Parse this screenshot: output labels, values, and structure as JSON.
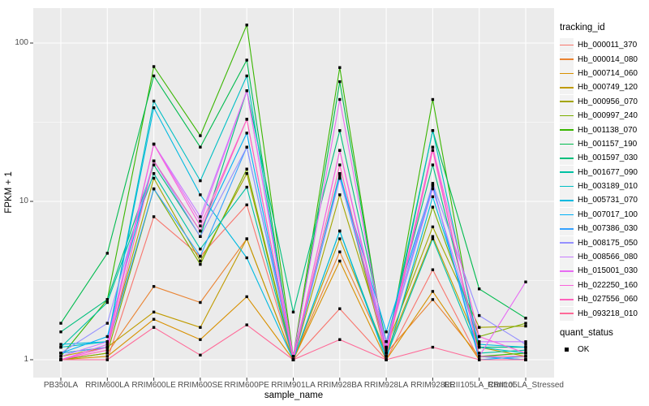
{
  "chart_data": {
    "type": "line",
    "title": "",
    "xlabel": "sample_name",
    "ylabel": "FPKM + 1",
    "y_scale": "log10",
    "y_ticks": [
      "1",
      "10",
      "100"
    ],
    "y_tick_values": [
      1,
      10,
      100
    ],
    "ylim": [
      0.78,
      165
    ],
    "grid": true,
    "legend_position": "right",
    "legend_titles": {
      "series": "tracking_id",
      "points": "quant_status"
    },
    "point_legend_items": [
      "OK"
    ],
    "point_shape": "filled-square",
    "categories": [
      "PB350LA",
      "RRIM600LA",
      "RRIM600LE",
      "RRIM600SE",
      "RRIM600PE",
      "RRIM901LA",
      "RRIM928BA",
      "RRIM928LA",
      "RRIM928LE",
      "RRII105LA_Control",
      "RRII105LA_Stressed"
    ],
    "series": [
      {
        "name": "Hb_000011_370",
        "color": "#F8766D",
        "values": [
          1.0,
          1.0,
          8.0,
          4.5,
          9.5,
          1.0,
          2.1,
          1.0,
          3.7,
          1.0,
          1.0
        ]
      },
      {
        "name": "Hb_000014_080",
        "color": "#EA8331",
        "values": [
          1.0,
          1.1,
          2.9,
          2.3,
          5.8,
          1.0,
          4.8,
          1.1,
          2.4,
          1.05,
          1.0
        ]
      },
      {
        "name": "Hb_000714_060",
        "color": "#D89000",
        "values": [
          1.0,
          1.05,
          1.8,
          1.34,
          2.5,
          1.0,
          4.2,
          1.0,
          2.7,
          1.0,
          1.0
        ]
      },
      {
        "name": "Hb_000749_120",
        "color": "#C09B00",
        "values": [
          1.05,
          1.2,
          2.0,
          1.6,
          5.8,
          1.0,
          5.8,
          1.1,
          6.0,
          1.2,
          1.05
        ]
      },
      {
        "name": "Hb_000956_070",
        "color": "#A3A500",
        "values": [
          1.1,
          1.2,
          14.0,
          4.2,
          15.0,
          1.0,
          11.0,
          1.2,
          6.9,
          1.6,
          1.63
        ]
      },
      {
        "name": "Hb_000997_240",
        "color": "#7CAE00",
        "values": [
          1.0,
          1.1,
          12.0,
          4.0,
          16.0,
          1.0,
          15.0,
          1.05,
          9.2,
          1.4,
          1.7
        ]
      },
      {
        "name": "Hb_001138_070",
        "color": "#39B600",
        "values": [
          1.05,
          2.4,
          71.0,
          26.0,
          130.0,
          1.05,
          70.0,
          1.05,
          44.0,
          1.05,
          1.1
        ]
      },
      {
        "name": "Hb_001157_190",
        "color": "#00BB4E",
        "values": [
          1.7,
          4.7,
          62.0,
          22.0,
          78.0,
          1.0,
          57.0,
          1.1,
          28.0,
          2.8,
          1.83
        ]
      },
      {
        "name": "Hb_001597_030",
        "color": "#00BF7D",
        "values": [
          1.5,
          2.4,
          17.0,
          6.0,
          50.0,
          2.0,
          28.0,
          1.3,
          17.0,
          1.2,
          1.2
        ]
      },
      {
        "name": "Hb_001677_090",
        "color": "#00C1A3",
        "values": [
          1.2,
          2.3,
          15.0,
          5.0,
          12.3,
          1.0,
          6.5,
          1.05,
          5.8,
          1.1,
          1.15
        ]
      },
      {
        "name": "Hb_003189_010",
        "color": "#00BFC4",
        "values": [
          1.2,
          1.3,
          43.0,
          13.5,
          62.0,
          1.0,
          15.0,
          1.2,
          28.0,
          1.2,
          1.1
        ]
      },
      {
        "name": "Hb_005731_070",
        "color": "#00BAE0",
        "values": [
          1.25,
          1.3,
          39.0,
          11.0,
          4.4,
          1.0,
          6.5,
          1.0,
          10.7,
          1.25,
          1.2
        ]
      },
      {
        "name": "Hb_007017_100",
        "color": "#00B0F6",
        "values": [
          1.1,
          1.4,
          18.0,
          6.5,
          27.0,
          1.0,
          14.5,
          1.5,
          12.7,
          1.0,
          1.05
        ]
      },
      {
        "name": "Hb_007386_030",
        "color": "#35A2FF",
        "values": [
          1.1,
          1.2,
          12.0,
          4.5,
          22.0,
          1.0,
          14.0,
          1.2,
          12.5,
          1.05,
          1.0
        ]
      },
      {
        "name": "Hb_008175_050",
        "color": "#9590FF",
        "values": [
          1.1,
          1.7,
          18.0,
          6.0,
          22.0,
          1.05,
          14.0,
          1.3,
          13.0,
          1.9,
          1.25
        ]
      },
      {
        "name": "Hb_008566_080",
        "color": "#C77CFF",
        "values": [
          1.05,
          1.3,
          23.0,
          8.0,
          50.0,
          1.0,
          21.0,
          1.2,
          12.0,
          1.3,
          1.3
        ]
      },
      {
        "name": "Hb_015001_030",
        "color": "#E76BF3",
        "values": [
          1.0,
          1.25,
          23.0,
          7.5,
          50.0,
          1.05,
          44.0,
          1.15,
          22.0,
          1.05,
          3.1
        ]
      },
      {
        "name": "Hb_022250_160",
        "color": "#FA62DB",
        "values": [
          1.0,
          1.2,
          23.0,
          7.0,
          33.0,
          1.0,
          21.0,
          1.1,
          22.0,
          1.4,
          1.1
        ]
      },
      {
        "name": "Hb_027556_060",
        "color": "#FF62BC",
        "values": [
          1.0,
          1.15,
          18.0,
          6.5,
          33.0,
          1.0,
          17.0,
          1.05,
          21.0,
          1.05,
          1.05
        ]
      },
      {
        "name": "Hb_093218_010",
        "color": "#FF6A98",
        "values": [
          1.0,
          1.0,
          1.6,
          1.07,
          1.66,
          1.0,
          1.34,
          1.0,
          1.2,
          1.0,
          1.0
        ]
      }
    ]
  },
  "theme": {
    "background": "#FFFFFF",
    "panel_bg": "#EBEBEB",
    "grid_color": "#FFFFFF",
    "tick_color": "#333333",
    "axis_text_color": "#4D4D4D",
    "title_text_color": "#000000",
    "point_color": "#000000",
    "legend_key_bg": "#F2F2F2"
  }
}
